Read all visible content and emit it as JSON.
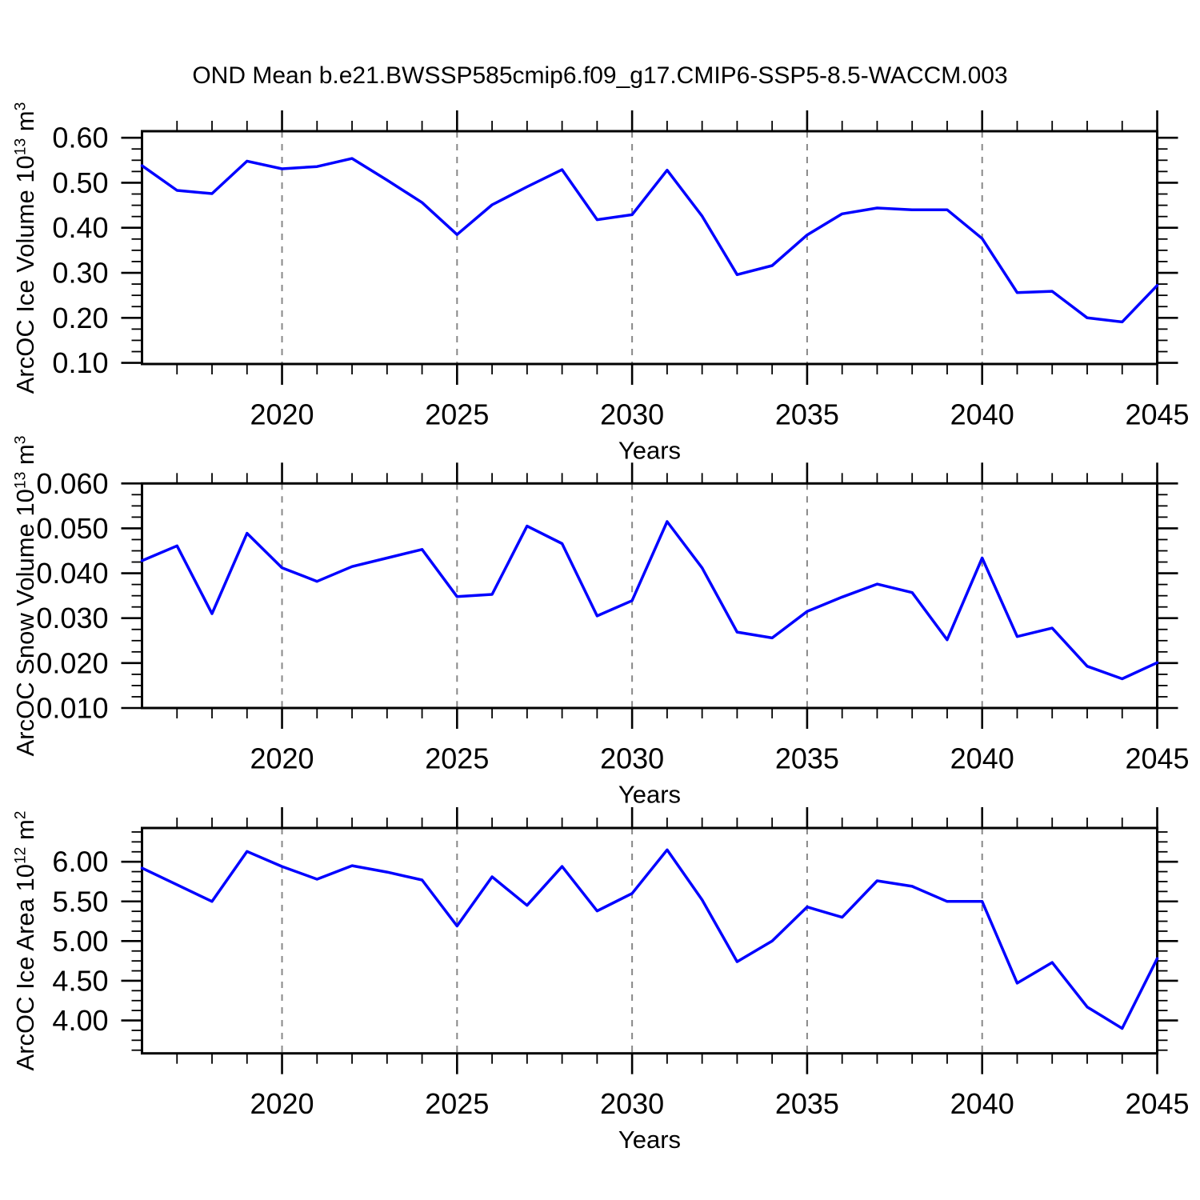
{
  "title": "OND Mean b.e21.BWSSP585cmip6.f09_g17.CMIP6-SSP5-8.5-WACCM.003",
  "colors": {
    "line": "#0000ff",
    "frame": "#000000",
    "grid": "#888888",
    "tick": "#000000",
    "text": "#000000",
    "background": "#ffffff"
  },
  "x_axis": {
    "label": "Years",
    "min": 2016,
    "max": 2045,
    "major_ticks": [
      2020,
      2025,
      2030,
      2035,
      2040,
      2045
    ],
    "minor_step": 1,
    "gridlines": [
      2020,
      2025,
      2030,
      2035,
      2040
    ]
  },
  "chart_data": [
    {
      "type": "line",
      "title": "",
      "xlabel": "Years",
      "ylabel": "ArcOC Ice Volume 10^13 m^3",
      "ylabel_segments": [
        {
          "text": "ArcOC Ice Volume 10",
          "sup": false
        },
        {
          "text": "13",
          "sup": true
        },
        {
          "text": " m",
          "sup": false
        },
        {
          "text": "3",
          "sup": true
        }
      ],
      "x": [
        2016,
        2017,
        2018,
        2019,
        2020,
        2021,
        2022,
        2023,
        2024,
        2025,
        2026,
        2027,
        2028,
        2029,
        2030,
        2031,
        2032,
        2033,
        2034,
        2035,
        2036,
        2037,
        2038,
        2039,
        2040,
        2041,
        2042,
        2043,
        2044,
        2045
      ],
      "values": [
        0.538,
        0.483,
        0.476,
        0.548,
        0.531,
        0.536,
        0.554,
        0.506,
        0.456,
        0.385,
        0.451,
        0.491,
        0.529,
        0.418,
        0.429,
        0.528,
        0.426,
        0.296,
        0.316,
        0.384,
        0.431,
        0.444,
        0.44,
        0.44,
        0.376,
        0.256,
        0.259,
        0.2,
        0.191,
        0.272
      ],
      "xlim": [
        2016,
        2045
      ],
      "ylim": [
        0.0975,
        0.6145
      ],
      "yticks": [
        0.1,
        0.2,
        0.3,
        0.4,
        0.5,
        0.6
      ],
      "ytick_labels": [
        "0.10",
        "0.20",
        "0.30",
        "0.40",
        "0.50",
        "0.60"
      ],
      "y_minor_step": 0.025,
      "grid": "x-dashed",
      "legend": "none"
    },
    {
      "type": "line",
      "title": "",
      "xlabel": "Years",
      "ylabel": "ArcOC Snow Volume 10^13 m^3",
      "ylabel_segments": [
        {
          "text": "ArcOC Snow Volume 10",
          "sup": false
        },
        {
          "text": "13",
          "sup": true
        },
        {
          "text": " m",
          "sup": false
        },
        {
          "text": "3",
          "sup": true
        }
      ],
      "x": [
        2016,
        2017,
        2018,
        2019,
        2020,
        2021,
        2022,
        2023,
        2024,
        2025,
        2026,
        2027,
        2028,
        2029,
        2030,
        2031,
        2032,
        2033,
        2034,
        2035,
        2036,
        2037,
        2038,
        2039,
        2040,
        2041,
        2042,
        2043,
        2044,
        2045
      ],
      "values": [
        0.0428,
        0.0461,
        0.031,
        0.0489,
        0.0412,
        0.0382,
        0.0415,
        0.0434,
        0.0453,
        0.0348,
        0.0353,
        0.0505,
        0.0466,
        0.0305,
        0.0339,
        0.0515,
        0.0412,
        0.0269,
        0.0256,
        0.0315,
        0.0347,
        0.0376,
        0.0357,
        0.0252,
        0.0434,
        0.0259,
        0.0278,
        0.0193,
        0.0165,
        0.0201
      ],
      "xlim": [
        2016,
        2045
      ],
      "ylim": [
        0.01,
        0.06
      ],
      "yticks": [
        0.01,
        0.02,
        0.03,
        0.04,
        0.05,
        0.06
      ],
      "ytick_labels": [
        "0.010",
        "0.020",
        "0.030",
        "0.040",
        "0.050",
        "0.060"
      ],
      "y_minor_step": 0.0025,
      "grid": "x-dashed",
      "legend": "none"
    },
    {
      "type": "line",
      "title": "",
      "xlabel": "Years",
      "ylabel": "ArcOC Ice Area 10^12 m^2",
      "ylabel_segments": [
        {
          "text": "ArcOC Ice Area 10",
          "sup": false
        },
        {
          "text": "12",
          "sup": true
        },
        {
          "text": " m",
          "sup": false
        },
        {
          "text": "2",
          "sup": true
        }
      ],
      "x": [
        2016,
        2017,
        2018,
        2019,
        2020,
        2021,
        2022,
        2023,
        2024,
        2025,
        2026,
        2027,
        2028,
        2029,
        2030,
        2031,
        2032,
        2033,
        2034,
        2035,
        2036,
        2037,
        2038,
        2039,
        2040,
        2041,
        2042,
        2043,
        2044,
        2045
      ],
      "values": [
        5.92,
        5.71,
        5.5,
        6.13,
        5.94,
        5.78,
        5.95,
        5.87,
        5.77,
        5.19,
        5.81,
        5.45,
        5.94,
        5.38,
        5.6,
        6.15,
        5.52,
        4.74,
        5.0,
        5.43,
        5.3,
        5.76,
        5.69,
        5.5,
        5.5,
        4.47,
        4.73,
        4.17,
        3.9,
        4.78
      ],
      "xlim": [
        2016,
        2045
      ],
      "ylim": [
        3.585,
        6.425
      ],
      "yticks": [
        4.0,
        4.5,
        5.0,
        5.5,
        6.0
      ],
      "ytick_labels": [
        "4.00",
        "4.50",
        "5.00",
        "5.50",
        "6.00"
      ],
      "y_minor_step": 0.125,
      "grid": "x-dashed",
      "legend": "none"
    }
  ]
}
